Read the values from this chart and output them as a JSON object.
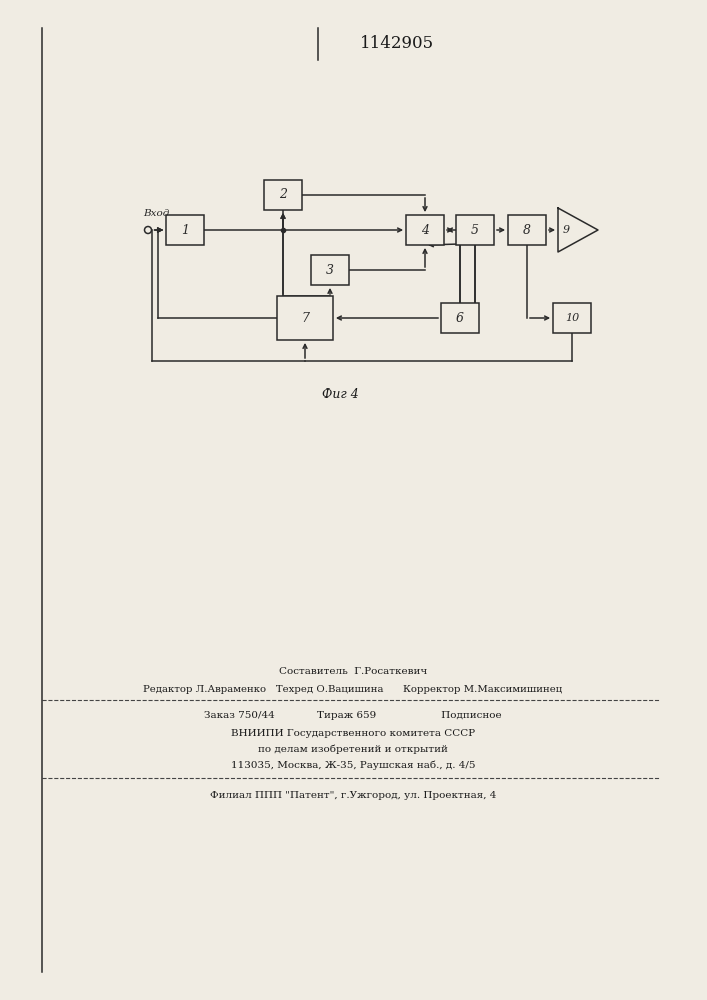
{
  "title": "1142905",
  "fig_label": "Фиг 4",
  "bg": "#f0ece3",
  "lc": "#2a2a2a",
  "bc": "#f0ece3",
  "vhod": "Вход",
  "footnote": [
    "Составитель  Г.Росаткевич",
    "Редактор Л.Авраменко   Техред О.Вацишина      Корректор М.Максимишинец",
    "Заказ 750/44             Тираж 659                    Подписное",
    "ВНИИПИ Государственного комитета СССР",
    "по делам изобретений и открытий",
    "113035, Москва, Ж-35, Раушская наб., д. 4/5",
    "Филиал ППП \"Патент\", г.Ужгород, ул. Проектная, 4"
  ]
}
